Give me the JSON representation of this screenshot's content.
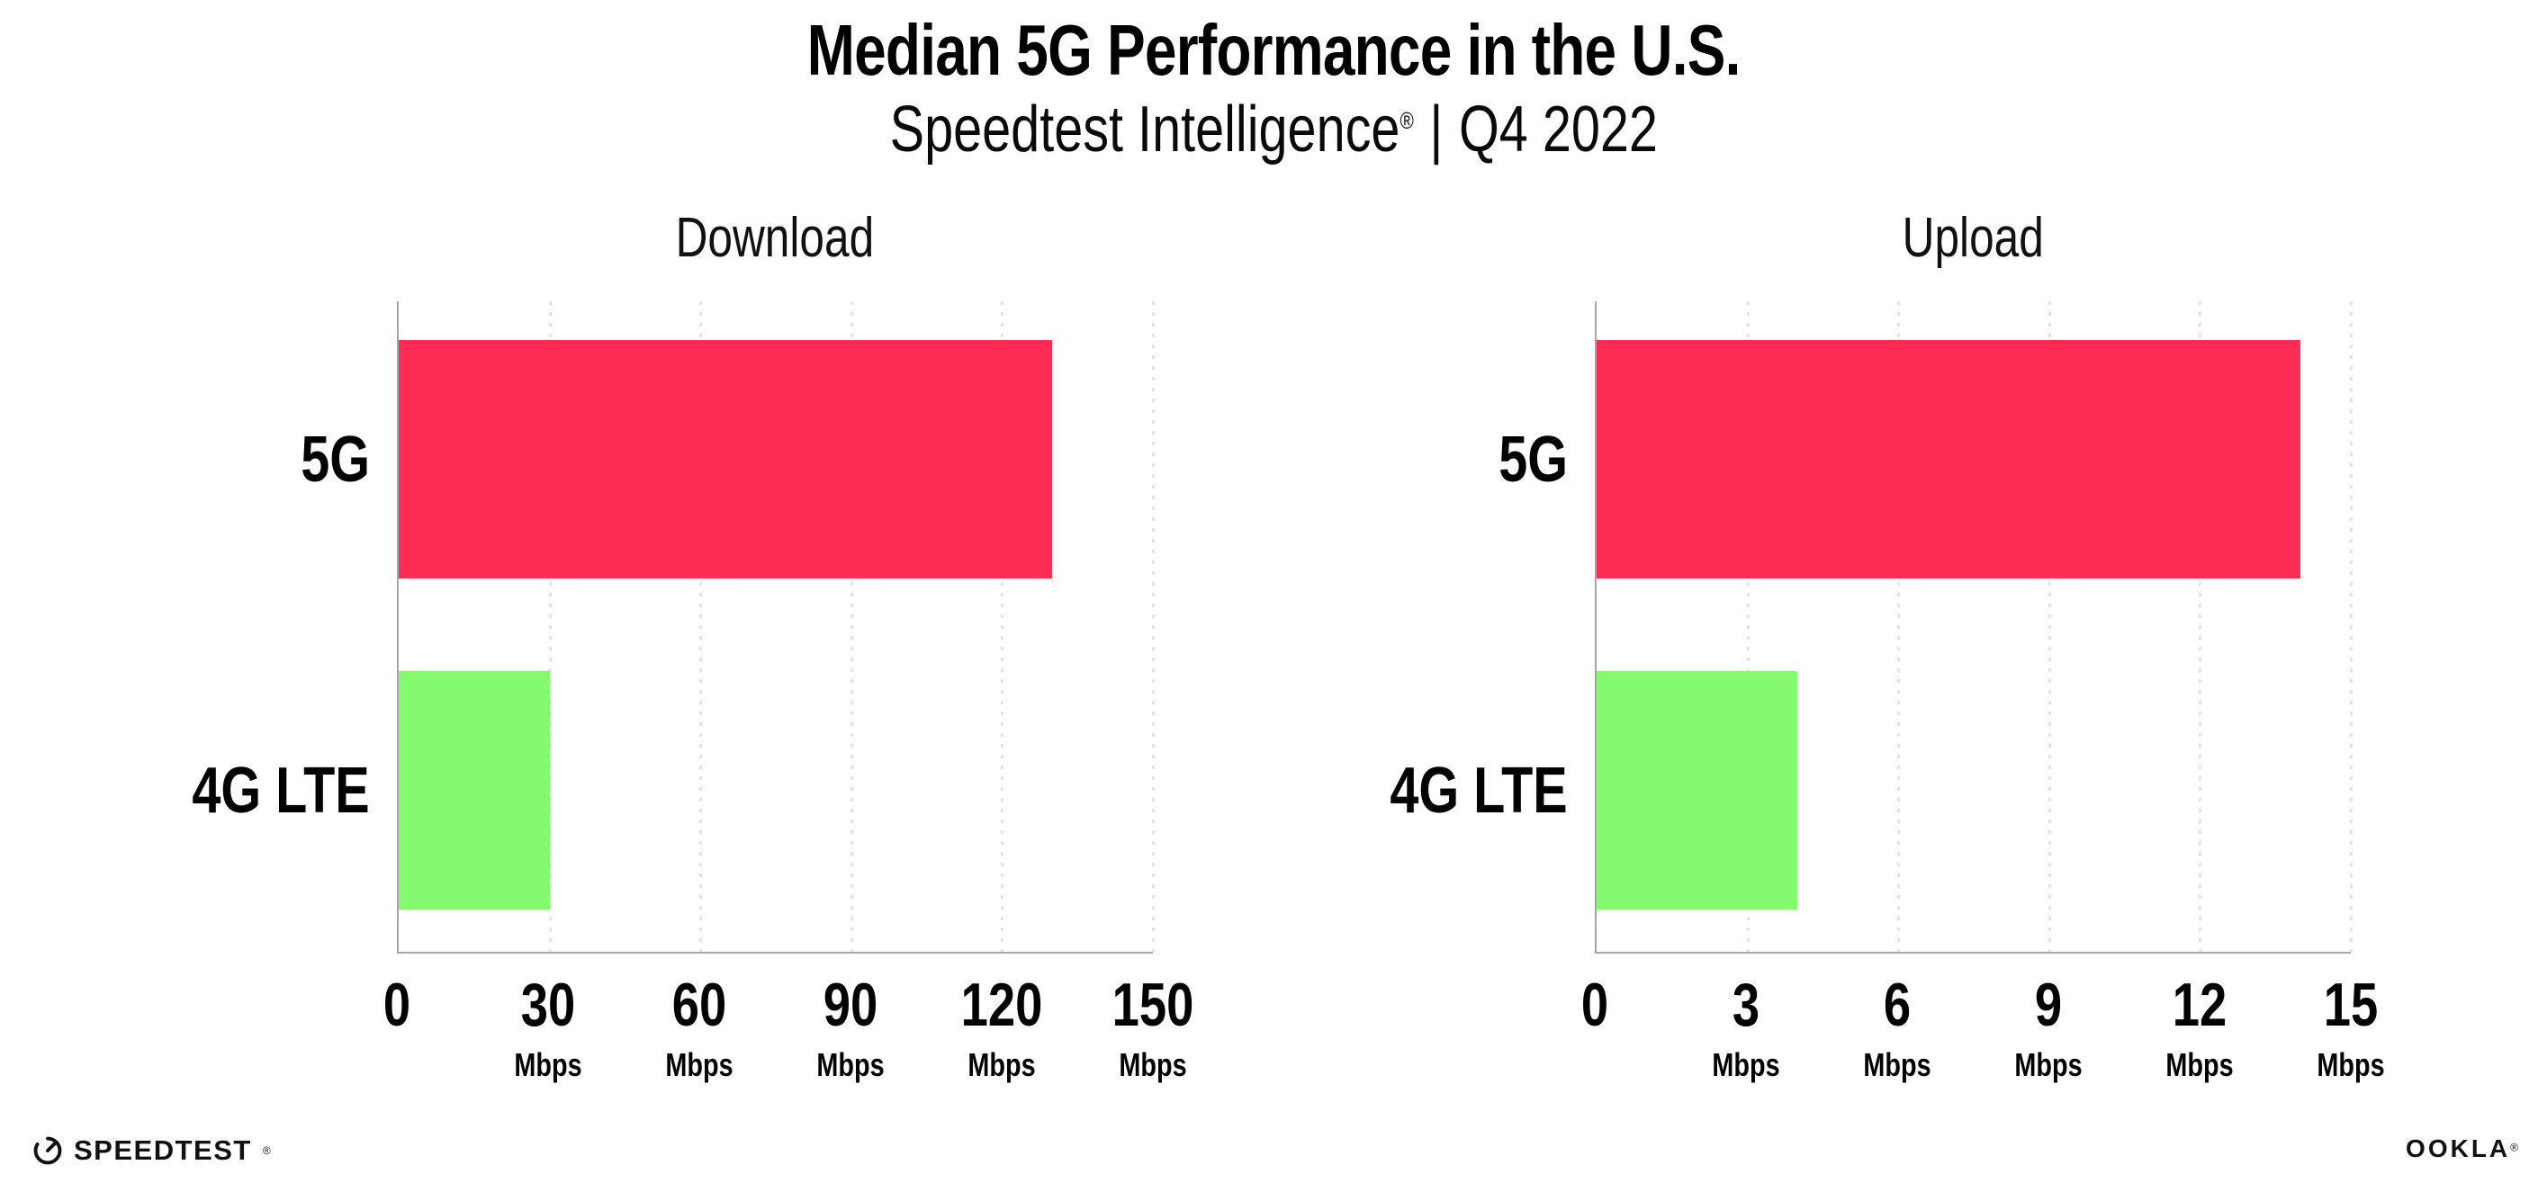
{
  "header": {
    "title": "Median 5G Performance in the U.S.",
    "subtitle": {
      "brand": "Speedtest Intelligence",
      "registered": "®",
      "separator": "|",
      "period": "Q4 2022"
    }
  },
  "chart_data": [
    {
      "type": "bar",
      "orientation": "horizontal",
      "title": "Download",
      "categories": [
        "5G",
        "4G LTE"
      ],
      "values": [
        130,
        30
      ],
      "unit": "Mbps",
      "xlim": [
        0,
        150
      ],
      "xticks": [
        0,
        30,
        60,
        90,
        120,
        150
      ],
      "bar_colors": [
        "#FF2D55",
        "#85FA6E"
      ],
      "grid": "dotted-vertical",
      "legend": "none"
    },
    {
      "type": "bar",
      "orientation": "horizontal",
      "title": "Upload",
      "categories": [
        "5G",
        "4G LTE"
      ],
      "values": [
        14,
        4
      ],
      "unit": "Mbps",
      "xlim": [
        0,
        15
      ],
      "xticks": [
        0,
        3,
        6,
        9,
        12,
        15
      ],
      "bar_colors": [
        "#FF2D55",
        "#85FA6E"
      ],
      "grid": "dotted-vertical",
      "legend": "none"
    }
  ],
  "colors": {
    "bar_5g": "#FF2D55",
    "bar_4g_lte": "#85FA6E",
    "axis": "#a6a6a6",
    "gridline": "#e2e2ea",
    "text": "#000000"
  },
  "footer": {
    "speedtest": "SPEEDTEST",
    "ookla": "OOKLA",
    "registered": "®"
  }
}
